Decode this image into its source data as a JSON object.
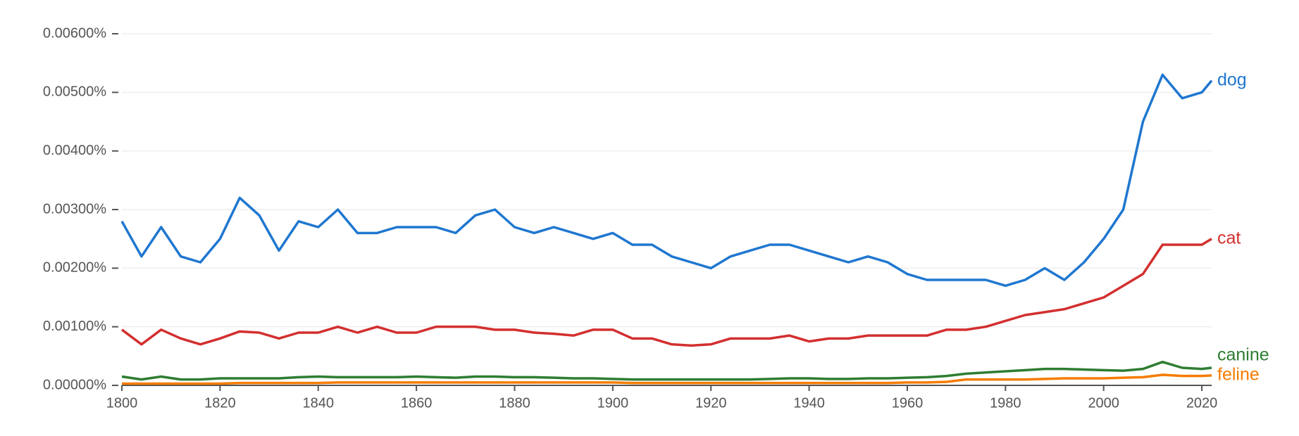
{
  "chart_data": {
    "type": "line",
    "x": [
      1800,
      1804,
      1808,
      1812,
      1816,
      1820,
      1824,
      1828,
      1832,
      1836,
      1840,
      1844,
      1848,
      1852,
      1856,
      1860,
      1864,
      1868,
      1872,
      1876,
      1880,
      1884,
      1888,
      1892,
      1896,
      1900,
      1904,
      1908,
      1912,
      1916,
      1920,
      1924,
      1928,
      1932,
      1936,
      1940,
      1944,
      1948,
      1952,
      1956,
      1960,
      1964,
      1968,
      1972,
      1976,
      1980,
      1984,
      1988,
      1992,
      1996,
      2000,
      2004,
      2008,
      2012,
      2016,
      2020,
      2022
    ],
    "series": [
      {
        "name": "dog",
        "color": "#1f77d0",
        "values": [
          0.0028,
          0.0022,
          0.0027,
          0.0022,
          0.0021,
          0.0025,
          0.0032,
          0.0029,
          0.0023,
          0.0028,
          0.0027,
          0.003,
          0.0026,
          0.0026,
          0.0027,
          0.0027,
          0.0027,
          0.0026,
          0.0029,
          0.003,
          0.0027,
          0.0026,
          0.0027,
          0.0026,
          0.0025,
          0.0026,
          0.0024,
          0.0024,
          0.0022,
          0.0021,
          0.002,
          0.0022,
          0.0023,
          0.0024,
          0.0024,
          0.0023,
          0.0022,
          0.0021,
          0.0022,
          0.0021,
          0.0019,
          0.0018,
          0.0018,
          0.0018,
          0.0018,
          0.0017,
          0.0018,
          0.002,
          0.0018,
          0.0021,
          0.0025,
          0.003,
          0.0045,
          0.0053,
          0.0049,
          0.005,
          0.0052
        ]
      },
      {
        "name": "cat",
        "color": "#d32f2f",
        "values": [
          0.00095,
          0.0007,
          0.00095,
          0.0008,
          0.0007,
          0.0008,
          0.00092,
          0.0009,
          0.0008,
          0.0009,
          0.0009,
          0.001,
          0.0009,
          0.001,
          0.0009,
          0.0009,
          0.001,
          0.001,
          0.001,
          0.00095,
          0.00095,
          0.0009,
          0.00088,
          0.00085,
          0.00095,
          0.00095,
          0.0008,
          0.0008,
          0.0007,
          0.00068,
          0.0007,
          0.0008,
          0.0008,
          0.0008,
          0.00085,
          0.00075,
          0.0008,
          0.0008,
          0.00085,
          0.00085,
          0.00085,
          0.00085,
          0.00095,
          0.00095,
          0.001,
          0.0011,
          0.0012,
          0.00125,
          0.0013,
          0.0014,
          0.0015,
          0.0017,
          0.0019,
          0.0024,
          0.0024,
          0.0024,
          0.0025
        ]
      },
      {
        "name": "canine",
        "color": "#2e7d32",
        "values": [
          0.00015,
          0.0001,
          0.00015,
          0.0001,
          0.0001,
          0.00012,
          0.00012,
          0.00012,
          0.00012,
          0.00014,
          0.00015,
          0.00014,
          0.00014,
          0.00014,
          0.00014,
          0.00015,
          0.00014,
          0.00013,
          0.00015,
          0.00015,
          0.00014,
          0.00014,
          0.00013,
          0.00012,
          0.00012,
          0.00011,
          0.0001,
          0.0001,
          0.0001,
          0.0001,
          0.0001,
          0.0001,
          0.0001,
          0.00011,
          0.00012,
          0.00012,
          0.00011,
          0.00011,
          0.00012,
          0.00012,
          0.00013,
          0.00014,
          0.00016,
          0.0002,
          0.00022,
          0.00024,
          0.00026,
          0.00028,
          0.00028,
          0.00027,
          0.00026,
          0.00025,
          0.00028,
          0.0004,
          0.0003,
          0.00028,
          0.0003
        ]
      },
      {
        "name": "feline",
        "color": "#f57c00",
        "values": [
          3e-05,
          3e-05,
          3e-05,
          3e-05,
          3e-05,
          3e-05,
          4e-05,
          4e-05,
          4e-05,
          4e-05,
          4e-05,
          5e-05,
          5e-05,
          5e-05,
          5e-05,
          5e-05,
          5e-05,
          5e-05,
          5e-05,
          5e-05,
          5e-05,
          5e-05,
          5e-05,
          5e-05,
          5e-05,
          5e-05,
          4e-05,
          4e-05,
          4e-05,
          4e-05,
          4e-05,
          4e-05,
          4e-05,
          4e-05,
          4e-05,
          4e-05,
          4e-05,
          4e-05,
          4e-05,
          4e-05,
          5e-05,
          5e-05,
          6e-05,
          0.0001,
          0.0001,
          0.0001,
          0.0001,
          0.00011,
          0.00012,
          0.00012,
          0.00012,
          0.00013,
          0.00014,
          0.00018,
          0.00016,
          0.00016,
          0.00017
        ]
      }
    ],
    "xlim": [
      1800,
      2022
    ],
    "xticks": [
      1800,
      1820,
      1840,
      1860,
      1880,
      1900,
      1920,
      1940,
      1960,
      1980,
      2000,
      2020
    ],
    "ylim": [
      0,
      0.006
    ],
    "yticks": [
      {
        "value": 0,
        "label": "0.00000%"
      },
      {
        "value": 0.001,
        "label": "0.00100%"
      },
      {
        "value": 0.002,
        "label": "0.00200%"
      },
      {
        "value": 0.003,
        "label": "0.00300%"
      },
      {
        "value": 0.004,
        "label": "0.00400%"
      },
      {
        "value": 0.005,
        "label": "0.00500%"
      },
      {
        "value": 0.006,
        "label": "0.00600%"
      }
    ],
    "grid": true
  }
}
